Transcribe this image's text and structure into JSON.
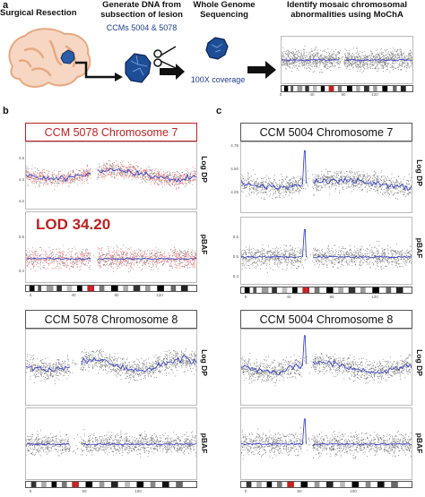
{
  "panel_labels": {
    "a": "a",
    "b": "b",
    "c": "c"
  },
  "workflow": {
    "step1": "Surgical Resection",
    "step2_line1": "Generate DNA from",
    "step2_line2": "subsection of lesion",
    "step2_ccm": "CCMs 5004 & 5078",
    "step3_line1": "Whole Genome",
    "step3_line2": "Sequencing",
    "step3_coverage": "100X coverage",
    "step4_line1": "Identify mosaic chromosomal",
    "step4_line2": "abnormalities using MoChA"
  },
  "colors": {
    "accent_blue": "#1d3f8f",
    "highlight_red": "#c02020",
    "brain_fill": "#f7d7c3",
    "brain_stroke": "#e7a880",
    "dot_gray": "#777777",
    "dot_red": "#ff6b6b",
    "line_blue": "#2a36c8"
  },
  "icons": [
    "brain-icon",
    "lesion-icon",
    "scissors-icon",
    "arrow-icon",
    "dna-fragment-icon"
  ],
  "panels_b": {
    "chr7_title": "CCM 5078 Chromosome 7",
    "lod": "LOD 34.20",
    "chr8_title": "CCM 5078 Chromosome 8"
  },
  "panels_c": {
    "chr7_title": "CCM 5004 Chromosome 7",
    "chr8_title": "CCM 5004 Chromosome 8"
  },
  "axis_labels": {
    "logdp": "Log DP",
    "pbaf": "pBAF"
  },
  "ticks": {
    "b_logdp": [
      "4.6",
      "4.4",
      "4.2"
    ],
    "b_pbaf": [
      "0.5",
      "0.4"
    ],
    "c_logdp": [
      "4.75",
      "4.50",
      "4.25"
    ],
    "c_pbaf": [
      "0.6",
      "0.5",
      "0.4"
    ],
    "b7_x": [
      "0",
      "40",
      "80",
      "120"
    ],
    "b8_x": [
      "0",
      "50",
      "100"
    ],
    "c7_x": [
      "0",
      "40",
      "80",
      "120"
    ],
    "c8_x": [
      "0",
      "50",
      "100"
    ],
    "mini_x": [
      "0",
      "40",
      "80",
      "120"
    ]
  }
}
